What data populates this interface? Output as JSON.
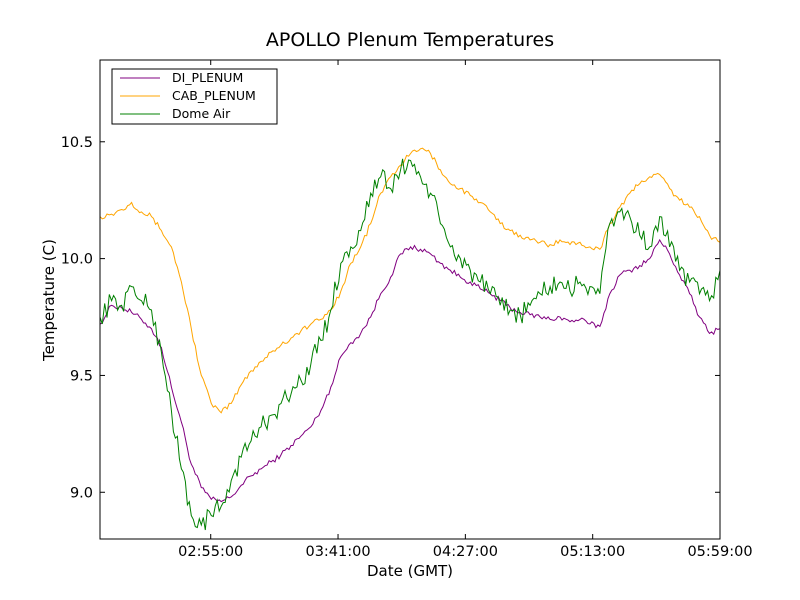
{
  "chart_data": {
    "type": "line",
    "title": "APOLLO Plenum Temperatures",
    "xlabel": "Date (GMT)",
    "ylabel": "Temperature (C)",
    "xlim": [
      2.25,
      5.9833
    ],
    "ylim": [
      8.8,
      10.85
    ],
    "x_ticks": [
      {
        "value": 2.9167,
        "label": "02:55:00"
      },
      {
        "value": 3.6833,
        "label": "03:41:00"
      },
      {
        "value": 4.45,
        "label": "04:27:00"
      },
      {
        "value": 5.2167,
        "label": "05:13:00"
      },
      {
        "value": 5.9833,
        "label": "05:59:00"
      }
    ],
    "y_ticks": [
      {
        "value": 9.0,
        "label": "9.0"
      },
      {
        "value": 9.5,
        "label": "9.5"
      },
      {
        "value": 10.0,
        "label": "10.0"
      },
      {
        "value": 10.5,
        "label": "10.5"
      }
    ],
    "grid": false,
    "legend_position": "top-left",
    "series": [
      {
        "name": "DI_PLENUM",
        "color": "#800080",
        "x": [
          2.25,
          2.32,
          2.38,
          2.44,
          2.5,
          2.56,
          2.62,
          2.68,
          2.74,
          2.8,
          2.86,
          2.92,
          2.98,
          3.04,
          3.1,
          3.16,
          3.22,
          3.28,
          3.34,
          3.4,
          3.46,
          3.52,
          3.58,
          3.64,
          3.7,
          3.76,
          3.82,
          3.88,
          3.94,
          4.0,
          4.06,
          4.12,
          4.18,
          4.24,
          4.3,
          4.36,
          4.42,
          4.48,
          4.54,
          4.6,
          4.66,
          4.72,
          4.78,
          4.84,
          4.9,
          4.96,
          5.02,
          5.08,
          5.14,
          5.2,
          5.26,
          5.32,
          5.38,
          5.44,
          5.5,
          5.56,
          5.62,
          5.68,
          5.74,
          5.8,
          5.86,
          5.92,
          5.9833
        ],
        "y": [
          9.72,
          9.8,
          9.79,
          9.77,
          9.74,
          9.7,
          9.62,
          9.45,
          9.3,
          9.12,
          9.02,
          8.97,
          8.96,
          8.98,
          9.03,
          9.07,
          9.1,
          9.13,
          9.16,
          9.2,
          9.24,
          9.28,
          9.35,
          9.45,
          9.58,
          9.64,
          9.68,
          9.75,
          9.85,
          9.92,
          10.02,
          10.05,
          10.04,
          10.02,
          9.98,
          9.95,
          9.92,
          9.9,
          9.87,
          9.85,
          9.82,
          9.79,
          9.77,
          9.76,
          9.75,
          9.74,
          9.75,
          9.73,
          9.74,
          9.72,
          9.71,
          9.85,
          9.93,
          9.95,
          9.97,
          10.0,
          10.08,
          10.02,
          9.93,
          9.85,
          9.75,
          9.68,
          9.7
        ]
      },
      {
        "name": "CAB_PLENUM",
        "color": "#ffa500",
        "x": [
          2.25,
          2.32,
          2.38,
          2.44,
          2.5,
          2.56,
          2.62,
          2.68,
          2.74,
          2.8,
          2.86,
          2.92,
          2.98,
          3.04,
          3.1,
          3.16,
          3.22,
          3.28,
          3.34,
          3.4,
          3.46,
          3.52,
          3.58,
          3.64,
          3.7,
          3.76,
          3.82,
          3.88,
          3.94,
          4.0,
          4.06,
          4.12,
          4.18,
          4.24,
          4.3,
          4.36,
          4.42,
          4.48,
          4.54,
          4.6,
          4.66,
          4.72,
          4.78,
          4.84,
          4.9,
          4.96,
          5.02,
          5.08,
          5.14,
          5.2,
          5.26,
          5.32,
          5.38,
          5.44,
          5.5,
          5.56,
          5.62,
          5.68,
          5.74,
          5.8,
          5.86,
          5.92,
          5.9833
        ],
        "y": [
          10.18,
          10.19,
          10.21,
          10.24,
          10.2,
          10.18,
          10.12,
          10.05,
          9.9,
          9.7,
          9.5,
          9.38,
          9.34,
          9.38,
          9.46,
          9.52,
          9.56,
          9.6,
          9.63,
          9.66,
          9.69,
          9.72,
          9.74,
          9.78,
          9.86,
          9.98,
          10.05,
          10.15,
          10.28,
          10.35,
          10.4,
          10.45,
          10.47,
          10.45,
          10.38,
          10.32,
          10.3,
          10.27,
          10.24,
          10.2,
          10.15,
          10.12,
          10.1,
          10.08,
          10.07,
          10.06,
          10.08,
          10.06,
          10.07,
          10.05,
          10.04,
          10.15,
          10.22,
          10.28,
          10.32,
          10.35,
          10.36,
          10.3,
          10.25,
          10.22,
          10.18,
          10.1,
          10.07
        ]
      },
      {
        "name": "Dome Air",
        "color": "#008000",
        "x": [
          2.25,
          2.32,
          2.38,
          2.44,
          2.5,
          2.56,
          2.62,
          2.68,
          2.74,
          2.8,
          2.86,
          2.92,
          2.98,
          3.04,
          3.1,
          3.16,
          3.22,
          3.28,
          3.34,
          3.4,
          3.46,
          3.52,
          3.58,
          3.64,
          3.7,
          3.76,
          3.82,
          3.88,
          3.94,
          4.0,
          4.06,
          4.12,
          4.18,
          4.24,
          4.3,
          4.36,
          4.42,
          4.48,
          4.54,
          4.6,
          4.66,
          4.72,
          4.78,
          4.84,
          4.9,
          4.96,
          5.02,
          5.08,
          5.14,
          5.2,
          5.26,
          5.32,
          5.38,
          5.44,
          5.5,
          5.56,
          5.62,
          5.68,
          5.74,
          5.8,
          5.86,
          5.92,
          5.9833
        ],
        "y": [
          9.75,
          9.82,
          9.8,
          9.88,
          9.82,
          9.78,
          9.6,
          9.35,
          9.1,
          8.9,
          8.86,
          8.9,
          8.94,
          9.05,
          9.15,
          9.22,
          9.28,
          9.33,
          9.38,
          9.42,
          9.48,
          9.55,
          9.65,
          9.78,
          9.98,
          10.05,
          10.12,
          10.28,
          10.35,
          10.3,
          10.38,
          10.42,
          10.35,
          10.28,
          10.15,
          10.05,
          10.0,
          9.95,
          9.9,
          9.85,
          9.8,
          9.78,
          9.76,
          9.8,
          9.85,
          9.88,
          9.9,
          9.86,
          9.9,
          9.88,
          9.85,
          10.15,
          10.2,
          10.18,
          10.1,
          10.05,
          10.18,
          10.05,
          9.95,
          9.9,
          9.85,
          9.82,
          9.95
        ]
      }
    ]
  }
}
